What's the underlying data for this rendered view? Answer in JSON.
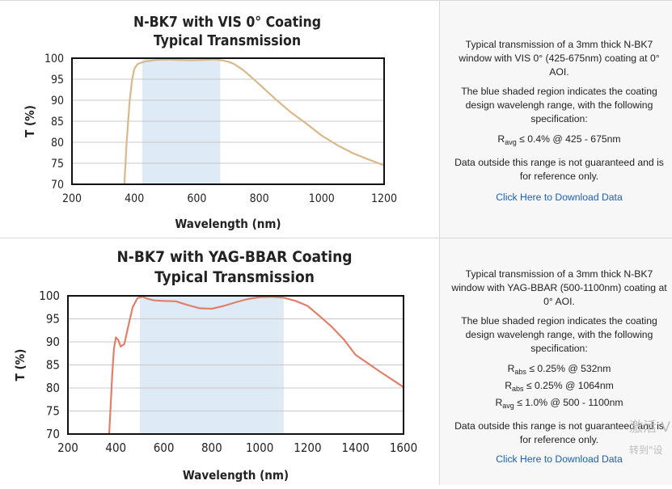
{
  "charts": [
    {
      "title_line1": "N-BK7 with VIS 0° Coating",
      "title_line2": "Typical Transmission",
      "description_1": "Typical transmission of a 3mm thick N-BK7 window with VIS 0° (425-675nm) coating at 0° AOI.",
      "description_2": "The blue shaded region indicates the coating design wavelengh range, with the following specification:",
      "spec": [
        {
          "symbol": "R",
          "sub": "avg",
          "text": " ≤ 0.4% @ 425 - 675nm"
        }
      ],
      "disclaimer": "Data outside this range is not guaranteed and is for reference only.",
      "download_link": "Click Here to Download Data"
    },
    {
      "title_line1": "N-BK7 with YAG-BBAR Coating",
      "title_line2": "Typical Transmission",
      "description_1": "Typical transmission of a 3mm thick N-BK7 window with YAG-BBAR (500-1100nm) coating at 0° AOI.",
      "description_2": "The blue shaded region indicates the coating design wavelengh range, with the following specification:",
      "spec": [
        {
          "symbol": "R",
          "sub": "abs",
          "text": " ≤ 0.25% @ 532nm"
        },
        {
          "symbol": "R",
          "sub": "abs",
          "text": " ≤ 0.25% @ 1064nm"
        },
        {
          "symbol": "R",
          "sub": "avg",
          "text": " ≤ 1.0% @ 500 - 1100nm"
        }
      ],
      "disclaimer": "Data outside this range is not guaranteed and is for reference only.",
      "download_link": "Click Here to Download Data"
    }
  ],
  "chart_data": [
    {
      "type": "line",
      "title": "N-BK7 with VIS 0° Coating Typical Transmission",
      "xlabel": "Wavelength (nm)",
      "ylabel": "T (%)",
      "xlim": [
        200,
        1200
      ],
      "ylim": [
        70,
        100
      ],
      "xticks": [
        200,
        400,
        600,
        800,
        1000,
        1200
      ],
      "yticks": [
        70,
        75,
        80,
        85,
        90,
        95,
        100
      ],
      "grid": true,
      "shaded_region": [
        425,
        675
      ],
      "line_color": "#d9b98c",
      "shade_color": "#deeaf6",
      "series": [
        {
          "x": [
            368,
            375,
            385,
            393,
            400,
            410,
            420,
            440,
            470,
            500,
            540,
            580,
            620,
            660,
            680,
            700,
            720,
            750,
            800,
            850,
            900,
            950,
            1000,
            1050,
            1100,
            1150,
            1200
          ],
          "y": [
            70,
            80,
            90,
            95,
            97.5,
            98.6,
            98.9,
            99.3,
            99.6,
            99.7,
            99.6,
            99.5,
            99.6,
            99.7,
            99.5,
            99.2,
            98.6,
            97.1,
            93.8,
            90.4,
            87.2,
            84.5,
            81.6,
            79.3,
            77.4,
            75.9,
            74.5
          ]
        }
      ]
    },
    {
      "type": "line",
      "title": "N-BK7 with YAG-BBAR Coating Typical Transmission",
      "xlabel": "Wavelength (nm)",
      "ylabel": "T (%)",
      "xlim": [
        200,
        1600
      ],
      "ylim": [
        70,
        100
      ],
      "xticks": [
        200,
        400,
        600,
        800,
        1000,
        1200,
        1400,
        1600
      ],
      "yticks": [
        70,
        75,
        80,
        85,
        90,
        95,
        100
      ],
      "grid": true,
      "shaded_region": [
        500,
        1100
      ],
      "line_color": "#e0806a",
      "shade_color": "#deeaf6",
      "series": [
        {
          "x": [
            372,
            378,
            385,
            392,
            400,
            410,
            420,
            435,
            450,
            470,
            490,
            510,
            530,
            560,
            600,
            650,
            700,
            750,
            800,
            850,
            900,
            950,
            1000,
            1050,
            1100,
            1150,
            1200,
            1250,
            1300,
            1350,
            1400,
            1450,
            1500,
            1550,
            1600
          ],
          "y": [
            70,
            76,
            83,
            88.5,
            91,
            90.4,
            89,
            89.5,
            93,
            97.5,
            99.5,
            99.8,
            99.4,
            99.0,
            98.9,
            98.8,
            98.0,
            97.3,
            97.2,
            97.8,
            98.6,
            99.3,
            99.7,
            99.8,
            99.6,
            98.9,
            97.8,
            95.6,
            93.3,
            90.6,
            87.2,
            85.4,
            83.6,
            81.9,
            80.2
          ]
        }
      ]
    }
  ],
  "watermark": {
    "line1": "激活 V",
    "line2": "转到\"设"
  }
}
